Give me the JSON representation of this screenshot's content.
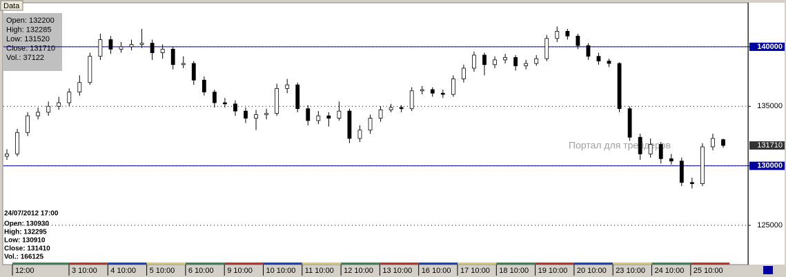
{
  "chart_data": {
    "type": "candlestick",
    "tab": "Data",
    "info_box": [
      "Open: 132200",
      "High: 132285",
      "Low: 131520",
      "Close: 131710",
      "Vol.: 37122"
    ],
    "cursor_box": [
      "24/07/2012 17:00",
      "Open: 130930",
      "High: 132295",
      "Low: 130910",
      "Close: 131410",
      "Vol.: 166125"
    ],
    "watermark": "Портал для трейдеров",
    "categories": [
      "12:00",
      "3 10:00",
      "4 10:00",
      "5 10:00",
      "6 10:00",
      "9 10:00",
      "10 10:00",
      "11 10:00",
      "12 10:00",
      "13 10:00",
      "16 10:00",
      "17 10:00",
      "18 10:00",
      "19 10:00",
      "20 10:00",
      "23 10:00",
      "24 10:00",
      "25 10:00"
    ],
    "candles": [
      [
        130800,
        131400,
        130500,
        131000
      ],
      [
        131000,
        133100,
        130800,
        132800
      ],
      [
        132800,
        134500,
        132500,
        134200
      ],
      [
        134200,
        134900,
        133900,
        134500
      ],
      [
        134500,
        135400,
        134200,
        135000
      ],
      [
        135000,
        135800,
        134700,
        135300
      ],
      [
        135300,
        136500,
        135000,
        136200
      ],
      [
        136200,
        137600,
        135900,
        137000
      ],
      [
        137000,
        139500,
        136800,
        139200
      ],
      [
        139200,
        141100,
        138900,
        140600
      ],
      [
        140600,
        140900,
        139400,
        139800
      ],
      [
        139800,
        140400,
        139500,
        140000
      ],
      [
        140000,
        140600,
        139700,
        140200
      ],
      [
        140200,
        141500,
        139900,
        140300
      ],
      [
        140300,
        140600,
        138900,
        139500
      ],
      [
        139500,
        140200,
        139000,
        139800
      ],
      [
        139800,
        140000,
        138100,
        138500
      ],
      [
        138500,
        139200,
        138200,
        138600
      ],
      [
        138600,
        138800,
        136800,
        137200
      ],
      [
        137200,
        137500,
        135900,
        136200
      ],
      [
        136200,
        136400,
        134900,
        135300
      ],
      [
        135300,
        135700,
        134900,
        135200
      ],
      [
        135200,
        135500,
        134200,
        134600
      ],
      [
        134600,
        134900,
        133600,
        134000
      ],
      [
        134000,
        134700,
        133000,
        134300
      ],
      [
        134300,
        134800,
        133900,
        134400
      ],
      [
        134400,
        136900,
        134200,
        136500
      ],
      [
        136500,
        137300,
        136100,
        136800
      ],
      [
        136800,
        137000,
        134500,
        134800
      ],
      [
        134800,
        135100,
        133400,
        133800
      ],
      [
        133800,
        134600,
        133500,
        134200
      ],
      [
        134200,
        134500,
        133300,
        134000
      ],
      [
        134000,
        135400,
        133800,
        134600
      ],
      [
        134600,
        134800,
        131900,
        132300
      ],
      [
        132300,
        133400,
        132000,
        133000
      ],
      [
        133000,
        134300,
        132700,
        134000
      ],
      [
        134000,
        135000,
        133700,
        134700
      ],
      [
        134700,
        135200,
        134500,
        134900
      ],
      [
        134900,
        135100,
        134500,
        134800
      ],
      [
        134800,
        136600,
        134600,
        136300
      ],
      [
        136300,
        136700,
        136000,
        136400
      ],
      [
        136400,
        136600,
        135800,
        136100
      ],
      [
        136100,
        136400,
        135700,
        136000
      ],
      [
        136000,
        137600,
        135800,
        137300
      ],
      [
        137300,
        138500,
        137000,
        138200
      ],
      [
        138200,
        139600,
        137900,
        139300
      ],
      [
        139300,
        139500,
        137600,
        138500
      ],
      [
        138500,
        139200,
        138200,
        138900
      ],
      [
        138900,
        139400,
        138600,
        139100
      ],
      [
        139100,
        139300,
        138000,
        138400
      ],
      [
        138400,
        138900,
        138100,
        138600
      ],
      [
        138600,
        139300,
        138400,
        139000
      ],
      [
        139000,
        141000,
        138800,
        140700
      ],
      [
        140700,
        141700,
        140400,
        141300
      ],
      [
        141300,
        141500,
        140600,
        140900
      ],
      [
        140900,
        141100,
        139800,
        140100
      ],
      [
        140100,
        140300,
        138900,
        139200
      ],
      [
        139200,
        139500,
        138500,
        138800
      ],
      [
        138800,
        139000,
        138300,
        138600
      ],
      [
        138600,
        138700,
        134500,
        134800
      ],
      [
        134800,
        135000,
        132100,
        132400
      ],
      [
        132400,
        132700,
        130500,
        131000
      ],
      [
        131000,
        132300,
        130700,
        131800
      ],
      [
        131800,
        132000,
        130200,
        130600
      ],
      [
        130600,
        131000,
        130100,
        130400
      ],
      [
        130400,
        130700,
        128300,
        128600
      ],
      [
        128600,
        129000,
        128100,
        128500
      ],
      [
        128500,
        131900,
        128300,
        131600
      ],
      [
        131600,
        132700,
        131300,
        132300
      ],
      [
        132200,
        132285,
        131520,
        131710
      ]
    ],
    "ylim": [
      121760,
      143640
    ],
    "yticks": [
      125000,
      130000,
      135000,
      140000
    ],
    "grid": true,
    "hlines": [
      140000,
      130000
    ],
    "hline_color": "#0000a0",
    "up_color": "#ffffff",
    "down_color": "#000000"
  }
}
